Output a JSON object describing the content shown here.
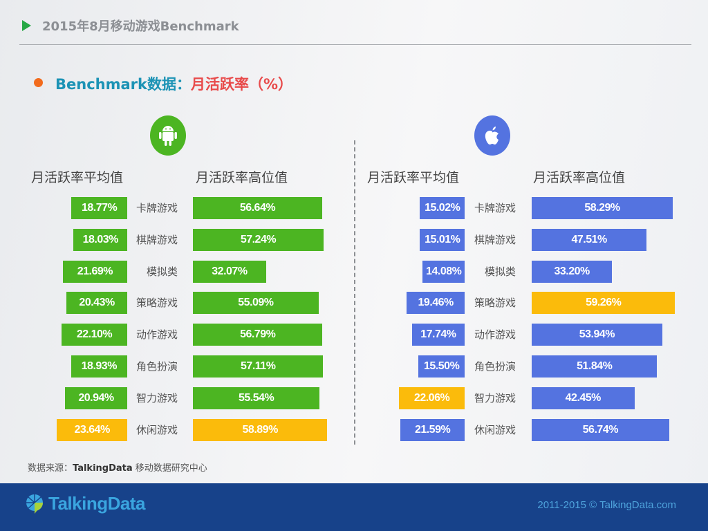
{
  "header": {
    "title": "2015年8月移动游戏Benchmark"
  },
  "subtitle": {
    "prefix": "Benchmark数据：",
    "metric": "月活跃率（%）"
  },
  "platforms": [
    {
      "name": "Android",
      "icon": "android-icon",
      "color": "#4cb522"
    },
    {
      "name": "iOS",
      "icon": "apple-icon",
      "color": "#5473e0"
    }
  ],
  "columns": {
    "avg": "月活跃率平均值",
    "high": "月活跃率高位值"
  },
  "highlight_color": "#fbbb0b",
  "chart_data": [
    {
      "type": "bar",
      "title": "Android 月活跃率",
      "categories": [
        "卡牌游戏",
        "棋牌游戏",
        "模拟类",
        "策略游戏",
        "动作游戏",
        "角色扮演",
        "智力游戏",
        "休闲游戏"
      ],
      "series": [
        {
          "name": "月活跃率平均值",
          "values": [
            18.77,
            18.03,
            21.69,
            20.43,
            22.1,
            18.93,
            20.94,
            23.64
          ],
          "labels": [
            "18.77%",
            "18.03%",
            "21.69%",
            "20.43%",
            "22.10%",
            "18.93%",
            "20.94%",
            "23.64%"
          ],
          "highlight_index": 7
        },
        {
          "name": "月活跃率高位值",
          "values": [
            56.64,
            57.24,
            32.07,
            55.09,
            56.79,
            57.11,
            55.54,
            58.89
          ],
          "labels": [
            "56.64%",
            "57.24%",
            "32.07%",
            "55.09%",
            "56.79%",
            "57.11%",
            "55.54%",
            "58.89%"
          ],
          "highlight_index": 7
        }
      ],
      "xlabel": "",
      "ylabel": "%"
    },
    {
      "type": "bar",
      "title": "iOS 月活跃率",
      "categories": [
        "卡牌游戏",
        "棋牌游戏",
        "模拟类",
        "策略游戏",
        "动作游戏",
        "角色扮演",
        "智力游戏",
        "休闲游戏"
      ],
      "series": [
        {
          "name": "月活跃率平均值",
          "values": [
            15.02,
            15.01,
            14.08,
            19.46,
            17.74,
            15.5,
            22.06,
            21.59
          ],
          "labels": [
            "15.02%",
            "15.01%",
            "14.08%",
            "19.46%",
            "17.74%",
            "15.50%",
            "22.06%",
            "21.59%"
          ],
          "highlight_index": 6
        },
        {
          "name": "月活跃率高位值",
          "values": [
            58.29,
            47.51,
            33.2,
            59.26,
            53.94,
            51.84,
            42.45,
            56.74
          ],
          "labels": [
            "58.29%",
            "47.51%",
            "33.20%",
            "59.26%",
            "53.94%",
            "51.84%",
            "42.45%",
            "56.74%"
          ],
          "highlight_index": 3
        }
      ],
      "xlabel": "",
      "ylabel": "%"
    }
  ],
  "source": {
    "label": "数据来源：",
    "org": "TalkingData",
    "dept": " 移动数据研究中心"
  },
  "footer": {
    "logo": "TalkingData",
    "copyright": "2011-2015 © TalkingData.com"
  }
}
